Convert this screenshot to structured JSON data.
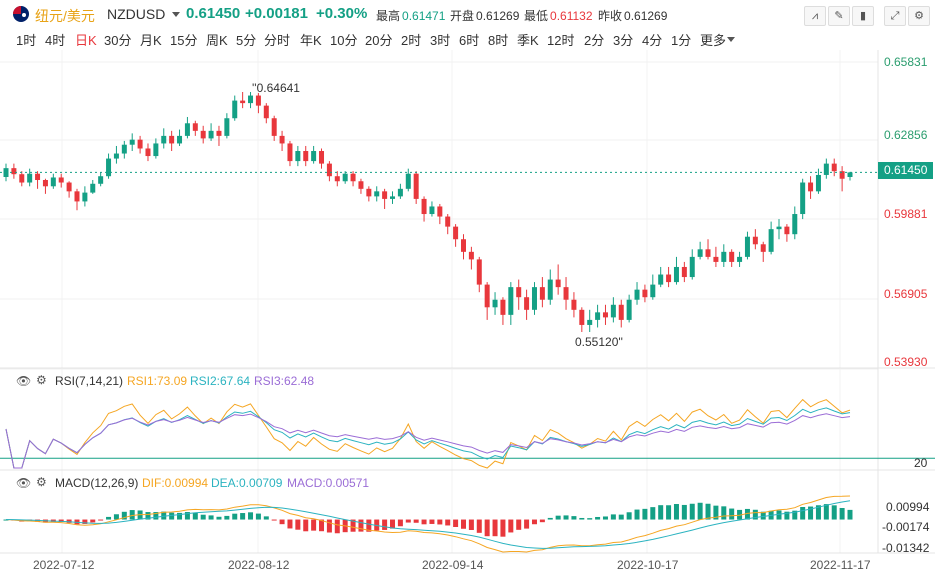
{
  "header": {
    "symbol_name": "纽元/美元",
    "symbol_code": "NZDUSD",
    "last_price": "0.61450",
    "change": "+0.00181",
    "change_pct": "+0.30%",
    "stats": [
      {
        "label": "最高",
        "value": "0.61471",
        "color": "#14a085"
      },
      {
        "label": "开盘",
        "value": "0.61269",
        "color": "#333333"
      },
      {
        "label": "最低",
        "value": "0.61132",
        "color": "#e8373c"
      },
      {
        "label": "昨收",
        "value": "0.61269",
        "color": "#333333"
      }
    ],
    "toolbar_icons": [
      "chart-type-icon",
      "draw-icon",
      "indicator-icon",
      "fullscreen-icon",
      "settings-icon"
    ]
  },
  "periods": [
    "1时",
    "4时",
    "日K",
    "30分",
    "月K",
    "15分",
    "周K",
    "5分",
    "分时",
    "年K",
    "10分",
    "20分",
    "2时",
    "3时",
    "6时",
    "8时",
    "季K",
    "12时",
    "2分",
    "3分",
    "4分",
    "1分",
    "更多"
  ],
  "active_period": "日K",
  "price_axis": [
    "0.65831",
    "0.62856",
    "0.59881",
    "0.56905",
    "0.53930"
  ],
  "current_price_tag": "0.61450",
  "annotations": {
    "high": "0.64641",
    "low": "0.55120"
  },
  "dates": [
    "2022-07-12",
    "2022-08-12",
    "2022-09-14",
    "2022-10-17",
    "2022-11-17"
  ],
  "rsi": {
    "title": "RSI(7,14,21)",
    "rsi1": "RSI1:73.09",
    "rsi2": "RSI2:67.64",
    "rsi3": "RSI3:62.48",
    "level": "20",
    "colors": {
      "rsi1": "#f5a623",
      "rsi2": "#2bb3c0",
      "rsi3": "#9b6dd6"
    }
  },
  "macd": {
    "title": "MACD(12,26,9)",
    "dif": "DIF:0.00994",
    "dea": "DEA:0.00709",
    "macd": "MACD:0.00571",
    "axis": [
      "0.00994",
      "-0.00174",
      "-0.01342"
    ],
    "colors": {
      "dif": "#f5a623",
      "dea": "#2bb3c0",
      "macd": "#9b6dd6"
    }
  },
  "colors": {
    "up": "#14a085",
    "down": "#e8373c"
  },
  "chart_data": {
    "type": "candlestick",
    "ylim": [
      0.5393,
      0.65831
    ],
    "candles": [
      [
        0.61269,
        0.6162,
        0.618,
        0.611
      ],
      [
        0.6162,
        0.6138,
        0.618,
        0.612
      ],
      [
        0.6138,
        0.6105,
        0.615,
        0.609
      ],
      [
        0.6105,
        0.614,
        0.616,
        0.609
      ],
      [
        0.614,
        0.6115,
        0.615,
        0.608
      ],
      [
        0.6115,
        0.609,
        0.612,
        0.606
      ],
      [
        0.609,
        0.6125,
        0.614,
        0.608
      ],
      [
        0.6125,
        0.6105,
        0.614,
        0.6085
      ],
      [
        0.6105,
        0.607,
        0.611,
        0.6045
      ],
      [
        0.607,
        0.603,
        0.608,
        0.5995
      ],
      [
        0.603,
        0.6065,
        0.609,
        0.601
      ],
      [
        0.6065,
        0.61,
        0.6115,
        0.606
      ],
      [
        0.61,
        0.613,
        0.6145,
        0.609
      ],
      [
        0.613,
        0.62,
        0.622,
        0.612
      ],
      [
        0.62,
        0.622,
        0.625,
        0.618
      ],
      [
        0.622,
        0.6255,
        0.627,
        0.62
      ],
      [
        0.6255,
        0.6275,
        0.63,
        0.623
      ],
      [
        0.6275,
        0.624,
        0.629,
        0.622
      ],
      [
        0.624,
        0.621,
        0.626,
        0.619
      ],
      [
        0.621,
        0.626,
        0.628,
        0.62
      ],
      [
        0.626,
        0.629,
        0.632,
        0.624
      ],
      [
        0.629,
        0.626,
        0.631,
        0.623
      ],
      [
        0.626,
        0.629,
        0.6315,
        0.625
      ],
      [
        0.629,
        0.634,
        0.6365,
        0.628
      ],
      [
        0.634,
        0.631,
        0.635,
        0.629
      ],
      [
        0.631,
        0.628,
        0.633,
        0.626
      ],
      [
        0.628,
        0.631,
        0.634,
        0.627
      ],
      [
        0.631,
        0.629,
        0.633,
        0.625
      ],
      [
        0.629,
        0.636,
        0.638,
        0.628
      ],
      [
        0.636,
        0.643,
        0.645,
        0.635
      ],
      [
        0.643,
        0.642,
        0.64641,
        0.64
      ],
      [
        0.642,
        0.645,
        0.64641,
        0.64
      ],
      [
        0.645,
        0.641,
        0.646,
        0.638
      ],
      [
        0.641,
        0.636,
        0.642,
        0.634
      ],
      [
        0.636,
        0.629,
        0.637,
        0.627
      ],
      [
        0.629,
        0.626,
        0.631,
        0.623
      ],
      [
        0.626,
        0.619,
        0.627,
        0.617
      ],
      [
        0.619,
        0.623,
        0.625,
        0.617
      ],
      [
        0.623,
        0.619,
        0.625,
        0.617
      ],
      [
        0.619,
        0.623,
        0.625,
        0.618
      ],
      [
        0.623,
        0.618,
        0.624,
        0.616
      ],
      [
        0.618,
        0.613,
        0.619,
        0.611
      ],
      [
        0.613,
        0.611,
        0.615,
        0.609
      ],
      [
        0.611,
        0.614,
        0.615,
        0.61
      ],
      [
        0.614,
        0.611,
        0.615,
        0.609
      ],
      [
        0.611,
        0.608,
        0.612,
        0.606
      ],
      [
        0.608,
        0.605,
        0.609,
        0.603
      ],
      [
        0.605,
        0.607,
        0.609,
        0.603
      ],
      [
        0.607,
        0.604,
        0.608,
        0.6
      ],
      [
        0.604,
        0.605,
        0.607,
        0.602
      ],
      [
        0.605,
        0.608,
        0.61,
        0.604
      ],
      [
        0.608,
        0.614,
        0.616,
        0.607
      ],
      [
        0.614,
        0.604,
        0.615,
        0.602
      ],
      [
        0.604,
        0.598,
        0.605,
        0.595
      ],
      [
        0.598,
        0.601,
        0.603,
        0.597
      ],
      [
        0.601,
        0.597,
        0.602,
        0.594
      ],
      [
        0.597,
        0.593,
        0.598,
        0.59
      ],
      [
        0.593,
        0.588,
        0.594,
        0.585
      ],
      [
        0.588,
        0.583,
        0.59,
        0.58
      ],
      [
        0.583,
        0.58,
        0.585,
        0.576
      ],
      [
        0.58,
        0.57,
        0.581,
        0.567
      ],
      [
        0.57,
        0.561,
        0.571,
        0.556
      ],
      [
        0.561,
        0.564,
        0.567,
        0.558
      ],
      [
        0.564,
        0.558,
        0.565,
        0.554
      ],
      [
        0.558,
        0.569,
        0.571,
        0.554
      ],
      [
        0.569,
        0.565,
        0.572,
        0.56
      ],
      [
        0.565,
        0.56,
        0.568,
        0.556
      ],
      [
        0.56,
        0.569,
        0.571,
        0.558
      ],
      [
        0.569,
        0.564,
        0.573,
        0.561
      ],
      [
        0.564,
        0.572,
        0.576,
        0.562
      ],
      [
        0.572,
        0.569,
        0.578,
        0.566
      ],
      [
        0.569,
        0.564,
        0.573,
        0.56
      ],
      [
        0.564,
        0.56,
        0.567,
        0.557
      ],
      [
        0.56,
        0.554,
        0.561,
        0.5512
      ],
      [
        0.554,
        0.556,
        0.56,
        0.5512
      ],
      [
        0.556,
        0.559,
        0.562,
        0.553
      ],
      [
        0.559,
        0.557,
        0.562,
        0.554
      ],
      [
        0.557,
        0.562,
        0.565,
        0.555
      ],
      [
        0.562,
        0.556,
        0.564,
        0.553
      ],
      [
        0.556,
        0.564,
        0.566,
        0.555
      ],
      [
        0.564,
        0.568,
        0.571,
        0.562
      ],
      [
        0.568,
        0.565,
        0.57,
        0.563
      ],
      [
        0.565,
        0.57,
        0.574,
        0.564
      ],
      [
        0.57,
        0.574,
        0.577,
        0.569
      ],
      [
        0.574,
        0.571,
        0.577,
        0.569
      ],
      [
        0.571,
        0.577,
        0.581,
        0.57
      ],
      [
        0.577,
        0.573,
        0.579,
        0.571
      ],
      [
        0.573,
        0.581,
        0.584,
        0.572
      ],
      [
        0.581,
        0.584,
        0.587,
        0.58
      ],
      [
        0.584,
        0.581,
        0.588,
        0.58
      ],
      [
        0.581,
        0.579,
        0.585,
        0.577
      ],
      [
        0.579,
        0.583,
        0.586,
        0.577
      ],
      [
        0.583,
        0.579,
        0.584,
        0.577
      ],
      [
        0.579,
        0.581,
        0.583,
        0.577
      ],
      [
        0.581,
        0.589,
        0.591,
        0.58
      ],
      [
        0.589,
        0.586,
        0.592,
        0.584
      ],
      [
        0.586,
        0.583,
        0.587,
        0.579
      ],
      [
        0.583,
        0.592,
        0.595,
        0.582
      ],
      [
        0.592,
        0.593,
        0.596,
        0.588
      ],
      [
        0.593,
        0.59,
        0.594,
        0.587
      ],
      [
        0.59,
        0.598,
        0.601,
        0.588
      ],
      [
        0.598,
        0.6105,
        0.612,
        0.596
      ],
      [
        0.6105,
        0.607,
        0.613,
        0.604
      ],
      [
        0.607,
        0.6135,
        0.616,
        0.606
      ],
      [
        0.6135,
        0.618,
        0.62,
        0.612
      ],
      [
        0.618,
        0.615,
        0.62,
        0.613
      ],
      [
        0.615,
        0.612,
        0.617,
        0.607
      ],
      [
        0.61269,
        0.6145,
        0.61471,
        0.61132
      ]
    ]
  }
}
